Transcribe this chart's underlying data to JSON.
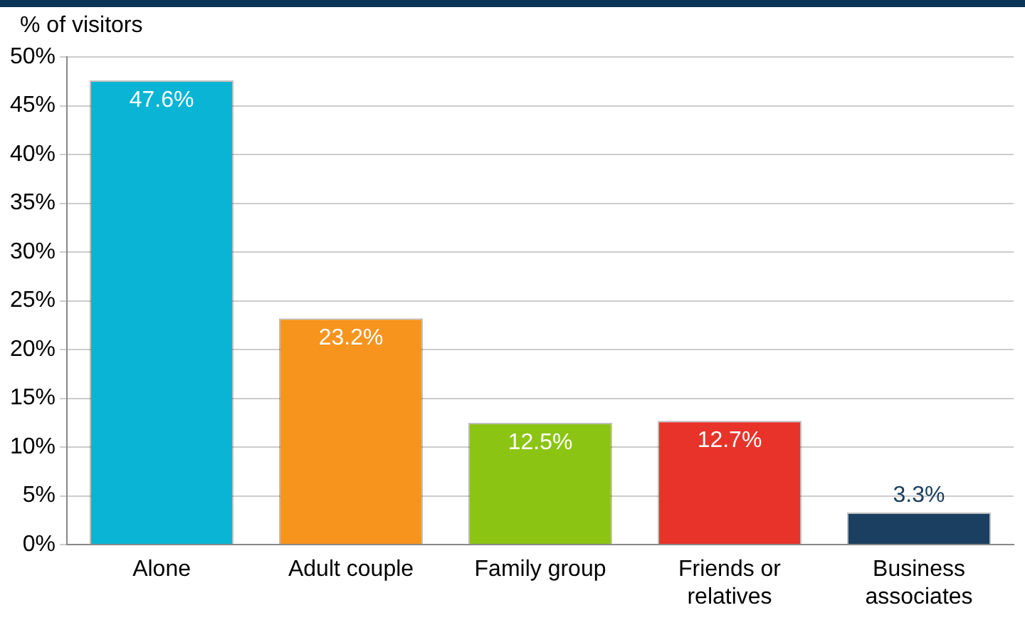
{
  "chart_data": {
    "type": "bar",
    "ylabel": "% of visitors",
    "categories": [
      "Alone",
      "Adult couple",
      "Family group",
      "Friends or relatives",
      "Business associates"
    ],
    "values": [
      47.6,
      23.2,
      12.5,
      12.7,
      3.3
    ],
    "colors": [
      "#0ab4d4",
      "#f7941d",
      "#8cc414",
      "#e8332a",
      "#1b3f60"
    ],
    "value_labels": [
      "47.6%",
      "23.2%",
      "12.5%",
      "12.7%",
      "3.3%"
    ],
    "ylim": [
      0,
      50
    ],
    "yticks": [
      {
        "value": 0,
        "label": "0%"
      },
      {
        "value": 5,
        "label": "5%"
      },
      {
        "value": 10,
        "label": "10%"
      },
      {
        "value": 15,
        "label": "15%"
      },
      {
        "value": 20,
        "label": "20%"
      },
      {
        "value": 25,
        "label": "25%"
      },
      {
        "value": 30,
        "label": "30%"
      },
      {
        "value": 35,
        "label": "35%"
      },
      {
        "value": 40,
        "label": "40%"
      },
      {
        "value": 45,
        "label": "45%"
      },
      {
        "value": 50,
        "label": "50%"
      }
    ],
    "grid": "y",
    "legend": false
  }
}
